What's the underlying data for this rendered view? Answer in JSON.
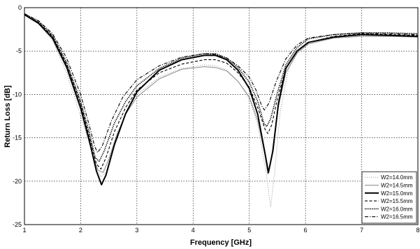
{
  "chart_data": {
    "type": "line",
    "xlabel": "Frequency [GHz]",
    "ylabel": "Return Loss [dB]",
    "xlim": [
      1,
      8
    ],
    "ylim": [
      -25,
      0
    ],
    "x_ticks": [
      "1",
      "2",
      "3",
      "4",
      "5",
      "6",
      "7",
      "8"
    ],
    "y_ticks": [
      "0",
      "-5",
      "-10",
      "-15",
      "-20",
      "-25"
    ],
    "grid": true,
    "legend_position": "bottom-right",
    "series": [
      {
        "name": "W2=14.0mm",
        "dash": "1.2,1.8",
        "width": 0.9,
        "color": "#9a9a9a",
        "points": [
          [
            1,
            -0.8
          ],
          [
            1.25,
            -1.8
          ],
          [
            1.5,
            -3.8
          ],
          [
            1.75,
            -7.5
          ],
          [
            2.0,
            -12.5
          ],
          [
            2.2,
            -16.5
          ],
          [
            2.35,
            -19.5
          ],
          [
            2.45,
            -19.0
          ],
          [
            2.6,
            -15.5
          ],
          [
            2.8,
            -12.3
          ],
          [
            3.0,
            -10.0
          ],
          [
            3.4,
            -8.0
          ],
          [
            3.8,
            -7.0
          ],
          [
            4.2,
            -6.6
          ],
          [
            4.4,
            -6.7
          ],
          [
            4.6,
            -7.2
          ],
          [
            4.8,
            -8.5
          ],
          [
            5.0,
            -10.5
          ],
          [
            5.15,
            -13.5
          ],
          [
            5.3,
            -19.0
          ],
          [
            5.38,
            -23.0
          ],
          [
            5.45,
            -19.0
          ],
          [
            5.55,
            -12.0
          ],
          [
            5.7,
            -7.0
          ],
          [
            5.9,
            -4.8
          ],
          [
            6.1,
            -3.9
          ],
          [
            6.5,
            -3.4
          ],
          [
            7.0,
            -3.2
          ],
          [
            7.5,
            -3.3
          ],
          [
            8.0,
            -3.4
          ]
        ]
      },
      {
        "name": "W2=14.5mm",
        "dash": "",
        "width": 1.0,
        "color": "#8a8a8a",
        "points": [
          [
            1,
            -0.8
          ],
          [
            1.25,
            -1.8
          ],
          [
            1.5,
            -3.6
          ],
          [
            1.75,
            -7.0
          ],
          [
            2.0,
            -11.8
          ],
          [
            2.15,
            -15.5
          ],
          [
            2.3,
            -18.7
          ],
          [
            2.4,
            -19.0
          ],
          [
            2.5,
            -17.5
          ],
          [
            2.65,
            -14.5
          ],
          [
            2.8,
            -12.3
          ],
          [
            3.0,
            -10.3
          ],
          [
            3.4,
            -8.2
          ],
          [
            3.8,
            -7.1
          ],
          [
            4.2,
            -6.8
          ],
          [
            4.4,
            -6.9
          ],
          [
            4.6,
            -7.3
          ],
          [
            4.8,
            -8.5
          ],
          [
            5.0,
            -10.3
          ],
          [
            5.15,
            -13.0
          ],
          [
            5.28,
            -17.0
          ],
          [
            5.33,
            -19.2
          ],
          [
            5.4,
            -17.0
          ],
          [
            5.5,
            -12.0
          ],
          [
            5.65,
            -7.5
          ],
          [
            5.85,
            -5.2
          ],
          [
            6.05,
            -4.2
          ],
          [
            6.5,
            -3.5
          ],
          [
            7.0,
            -3.3
          ],
          [
            7.5,
            -3.3
          ],
          [
            8.0,
            -3.4
          ]
        ]
      },
      {
        "name": "W2=15.0mm",
        "dash": "",
        "width": 2.0,
        "color": "#000000",
        "points": [
          [
            1,
            -0.8
          ],
          [
            1.25,
            -1.8
          ],
          [
            1.5,
            -3.5
          ],
          [
            1.75,
            -6.8
          ],
          [
            2.0,
            -11.5
          ],
          [
            2.15,
            -15.2
          ],
          [
            2.28,
            -18.8
          ],
          [
            2.37,
            -20.4
          ],
          [
            2.45,
            -19.3
          ],
          [
            2.6,
            -15.8
          ],
          [
            2.8,
            -12.2
          ],
          [
            3.0,
            -9.7
          ],
          [
            3.4,
            -7.2
          ],
          [
            3.8,
            -6.0
          ],
          [
            4.2,
            -5.5
          ],
          [
            4.4,
            -5.5
          ],
          [
            4.6,
            -6.0
          ],
          [
            4.8,
            -7.2
          ],
          [
            5.0,
            -9.3
          ],
          [
            5.15,
            -12.3
          ],
          [
            5.28,
            -16.8
          ],
          [
            5.34,
            -19.0
          ],
          [
            5.42,
            -16.5
          ],
          [
            5.52,
            -11.0
          ],
          [
            5.65,
            -7.0
          ],
          [
            5.85,
            -5.0
          ],
          [
            6.05,
            -4.0
          ],
          [
            6.5,
            -3.4
          ],
          [
            7.0,
            -3.1
          ],
          [
            7.5,
            -3.2
          ],
          [
            8.0,
            -3.3
          ]
        ]
      },
      {
        "name": "W2=15.5mm",
        "dash": "4,2.5",
        "width": 1.1,
        "color": "#000000",
        "points": [
          [
            1,
            -0.8
          ],
          [
            1.25,
            -1.7
          ],
          [
            1.5,
            -3.3
          ],
          [
            1.75,
            -6.5
          ],
          [
            2.0,
            -11.0
          ],
          [
            2.15,
            -14.8
          ],
          [
            2.28,
            -18.0
          ],
          [
            2.36,
            -18.6
          ],
          [
            2.45,
            -17.3
          ],
          [
            2.6,
            -14.3
          ],
          [
            2.8,
            -11.5
          ],
          [
            3.0,
            -9.5
          ],
          [
            3.4,
            -7.5
          ],
          [
            3.8,
            -6.5
          ],
          [
            4.2,
            -6.0
          ],
          [
            4.4,
            -6.0
          ],
          [
            4.6,
            -6.4
          ],
          [
            4.8,
            -7.5
          ],
          [
            5.0,
            -9.2
          ],
          [
            5.15,
            -11.5
          ],
          [
            5.28,
            -14.0
          ],
          [
            5.33,
            -14.5
          ],
          [
            5.4,
            -13.5
          ],
          [
            5.5,
            -10.5
          ],
          [
            5.65,
            -7.0
          ],
          [
            5.85,
            -5.0
          ],
          [
            6.05,
            -4.0
          ],
          [
            6.5,
            -3.3
          ],
          [
            7.0,
            -3.0
          ],
          [
            7.5,
            -3.1
          ],
          [
            8.0,
            -3.2
          ]
        ]
      },
      {
        "name": "W2=16.0mm",
        "dash": "1.3,1.3",
        "width": 1.6,
        "color": "#000000",
        "points": [
          [
            1,
            -0.7
          ],
          [
            1.25,
            -1.6
          ],
          [
            1.5,
            -3.2
          ],
          [
            1.75,
            -6.3
          ],
          [
            2.0,
            -10.8
          ],
          [
            2.15,
            -14.3
          ],
          [
            2.26,
            -17.3
          ],
          [
            2.33,
            -17.7
          ],
          [
            2.42,
            -16.5
          ],
          [
            2.6,
            -13.3
          ],
          [
            2.8,
            -10.8
          ],
          [
            3.0,
            -9.0
          ],
          [
            3.4,
            -7.0
          ],
          [
            3.8,
            -5.8
          ],
          [
            4.2,
            -5.3
          ],
          [
            4.4,
            -5.3
          ],
          [
            4.6,
            -5.8
          ],
          [
            4.8,
            -6.9
          ],
          [
            5.0,
            -8.6
          ],
          [
            5.15,
            -10.8
          ],
          [
            5.26,
            -13.3
          ],
          [
            5.31,
            -13.7
          ],
          [
            5.38,
            -12.8
          ],
          [
            5.5,
            -9.8
          ],
          [
            5.65,
            -6.6
          ],
          [
            5.85,
            -4.6
          ],
          [
            6.05,
            -3.6
          ],
          [
            6.5,
            -3.1
          ],
          [
            7.0,
            -2.9
          ],
          [
            7.5,
            -2.9
          ],
          [
            8.0,
            -3.0
          ]
        ]
      },
      {
        "name": "W2=16.5mm",
        "dash": "5,2,1.2,2",
        "width": 1.1,
        "color": "#000000",
        "points": [
          [
            1,
            -0.7
          ],
          [
            1.25,
            -1.5
          ],
          [
            1.5,
            -3.0
          ],
          [
            1.75,
            -5.8
          ],
          [
            2.0,
            -10.0
          ],
          [
            2.15,
            -13.5
          ],
          [
            2.25,
            -16.0
          ],
          [
            2.3,
            -16.7
          ],
          [
            2.38,
            -16.0
          ],
          [
            2.55,
            -13.0
          ],
          [
            2.75,
            -10.3
          ],
          [
            3.0,
            -8.3
          ],
          [
            3.4,
            -6.7
          ],
          [
            3.8,
            -5.7
          ],
          [
            4.2,
            -5.3
          ],
          [
            4.4,
            -5.4
          ],
          [
            4.6,
            -5.8
          ],
          [
            4.8,
            -6.7
          ],
          [
            5.0,
            -8.0
          ],
          [
            5.12,
            -9.5
          ],
          [
            5.22,
            -11.3
          ],
          [
            5.27,
            -11.8
          ],
          [
            5.35,
            -11.0
          ],
          [
            5.48,
            -8.5
          ],
          [
            5.65,
            -5.9
          ],
          [
            5.85,
            -4.3
          ],
          [
            6.05,
            -3.5
          ],
          [
            6.5,
            -3.1
          ],
          [
            7.0,
            -2.9
          ],
          [
            7.5,
            -3.0
          ],
          [
            8.0,
            -3.1
          ]
        ]
      }
    ]
  }
}
